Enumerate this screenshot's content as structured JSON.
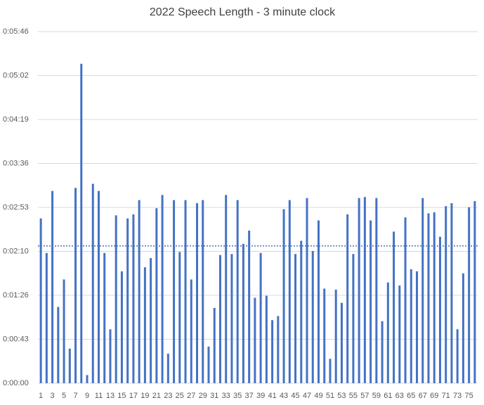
{
  "chart_data": {
    "type": "bar",
    "title": "2022 Speech Length - 3 minute clock",
    "categories": [
      "1",
      null,
      "3",
      null,
      "5",
      null,
      "7",
      null,
      "9",
      null,
      "11",
      null,
      "13",
      null,
      "15",
      null,
      "17",
      null,
      "19",
      null,
      "21",
      null,
      "23",
      null,
      "25",
      null,
      "27",
      null,
      "29",
      null,
      "31",
      null,
      "33",
      null,
      "35",
      null,
      "37",
      null,
      "39",
      null,
      "41",
      null,
      "43",
      null,
      "45",
      null,
      "47",
      null,
      "49",
      null,
      "51",
      null,
      "53",
      null,
      "55",
      null,
      "57",
      null,
      "59",
      null,
      "61",
      null,
      "63",
      null,
      "65",
      null,
      "67",
      null,
      "69",
      null,
      "71",
      null,
      "73",
      null,
      "75",
      null
    ],
    "values": [
      162,
      128,
      189,
      75,
      102,
      34,
      192,
      314,
      8,
      196,
      189,
      128,
      53,
      165,
      110,
      162,
      166,
      180,
      114,
      123,
      172,
      185,
      29,
      180,
      129,
      180,
      102,
      177,
      180,
      36,
      74,
      126,
      185,
      127,
      180,
      137,
      150,
      84,
      128,
      86,
      62,
      66,
      171,
      180,
      127,
      140,
      182,
      130,
      160,
      93,
      24,
      92,
      79,
      166,
      127,
      182,
      183,
      160,
      182,
      61,
      99,
      149,
      96,
      163,
      112,
      110,
      182,
      167,
      168,
      144,
      174,
      177,
      53,
      108,
      173,
      179
    ],
    "color": "#4472c4",
    "reference_line": 135,
    "ylim": [
      0,
      345.6
    ],
    "yticks": [
      {
        "value": 0,
        "label": "0:00:00"
      },
      {
        "value": 43.2,
        "label": "0:00:43"
      },
      {
        "value": 86.4,
        "label": "0:01:26"
      },
      {
        "value": 129.6,
        "label": "0:02:10"
      },
      {
        "value": 172.8,
        "label": "0:02:53"
      },
      {
        "value": 216,
        "label": "0:03:36"
      },
      {
        "value": 259.2,
        "label": "0:04:19"
      },
      {
        "value": 302.4,
        "label": "0:05:02"
      },
      {
        "value": 345.6,
        "label": "0:05:46"
      }
    ],
    "grid": true
  }
}
